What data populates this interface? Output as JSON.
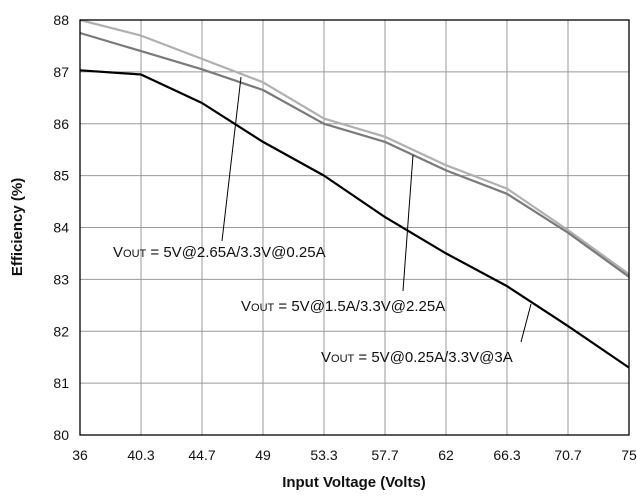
{
  "chart_data": {
    "type": "line",
    "xlabel": "Input Voltage (Volts)",
    "ylabel": "Efficiency (%)",
    "xlim": [
      36,
      75
    ],
    "ylim": [
      80,
      88
    ],
    "x_ticks": [
      "36",
      "40.3",
      "44.7",
      "49",
      "53.3",
      "57.7",
      "62",
      "66.3",
      "70.7",
      "75"
    ],
    "y_ticks": [
      "80",
      "81",
      "82",
      "83",
      "84",
      "85",
      "86",
      "87",
      "88"
    ],
    "grid": true,
    "x": [
      36,
      40.3,
      44.7,
      49,
      53.3,
      57.7,
      62,
      66.3,
      70.7,
      75
    ],
    "series": [
      {
        "color": "#b0b0b0",
        "values": [
          88.0,
          87.7,
          87.25,
          86.8,
          86.1,
          85.75,
          85.2,
          84.75,
          83.95,
          83.1
        ]
      },
      {
        "color": "#7a7a7a",
        "values": [
          87.75,
          87.4,
          87.05,
          86.65,
          86.0,
          85.65,
          85.1,
          84.65,
          83.9,
          83.05
        ]
      },
      {
        "color": "#000000",
        "values": [
          87.03,
          86.95,
          86.4,
          85.65,
          85.0,
          84.2,
          83.5,
          82.87,
          82.1,
          81.3
        ]
      }
    ],
    "annotations": [
      {
        "prefix": "V",
        "sub": "OUT",
        "text": " = 5V@2.65A/3.3V@0.25A"
      },
      {
        "prefix": "V",
        "sub": "OUT",
        "text": " = 5V@1.5A/3.3V@2.25A"
      },
      {
        "prefix": "V",
        "sub": "OUT",
        "text": " = 5V@0.25A/3.3V@3A"
      }
    ]
  }
}
